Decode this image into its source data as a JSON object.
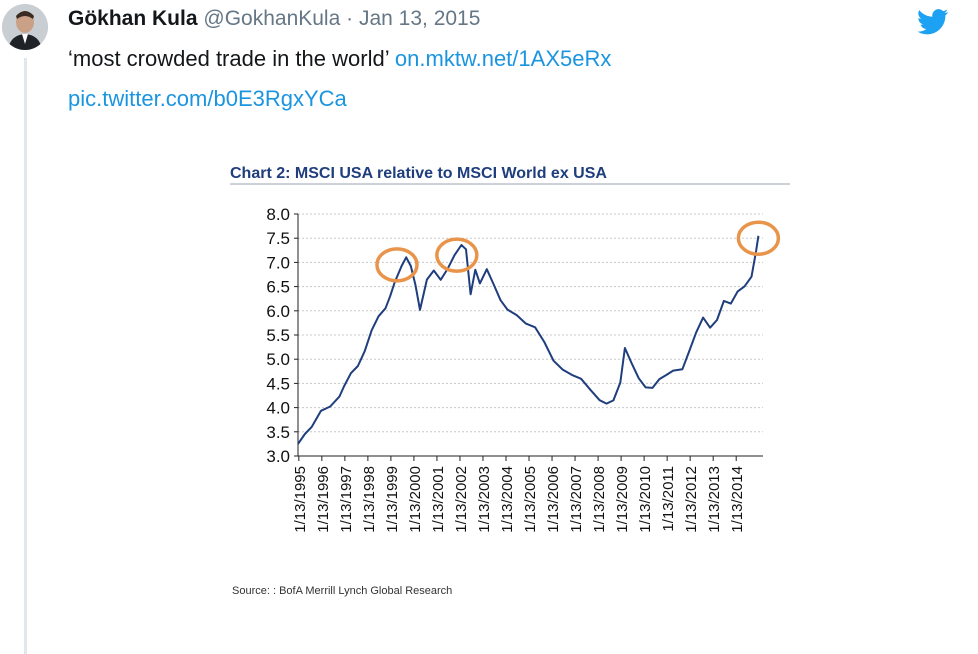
{
  "tweet": {
    "author_name": "Gökhan Kula",
    "handle": "@GokhanKula",
    "separator": "·",
    "date": "Jan 13, 2015",
    "text": "‘most crowded trade in the world’",
    "link1": "on.mktw.net/1AX5eRx",
    "link2": "pic.twitter.com/b0E3RgxYCa"
  },
  "icons": {
    "brand": "twitter-bird-icon",
    "avatar": "avatar"
  },
  "colors": {
    "link": "#1b95e0",
    "twitter_blue": "#1da1f2",
    "line": "#1f3e7d",
    "circle": "#e8944a"
  },
  "chart_data": {
    "type": "line",
    "title": "Chart 2: MSCI USA relative to MSCI World ex USA",
    "source": "Source: : BofA Merrill Lynch Global Research",
    "ylim": [
      3.0,
      8.0
    ],
    "yticks": [
      "3.0",
      "3.5",
      "4.0",
      "4.5",
      "5.0",
      "5.5",
      "6.0",
      "6.5",
      "7.0",
      "7.5",
      "8.0"
    ],
    "xticks": [
      "1/13/1995",
      "1/13/1996",
      "1/13/1997",
      "1/13/1998",
      "1/13/1999",
      "1/13/2000",
      "1/13/2001",
      "1/13/2002",
      "1/13/2003",
      "1/13/2004",
      "1/13/2005",
      "1/13/2006",
      "1/13/2007",
      "1/13/2008",
      "1/13/2009",
      "1/13/2010",
      "1/13/2011",
      "1/13/2012",
      "1/13/2013",
      "1/13/2014"
    ],
    "xlim": [
      1995.0,
      2015.2
    ],
    "grid": true,
    "series": [
      {
        "x": [
          1995.0,
          1995.3,
          1995.6,
          1996.0,
          1996.4,
          1996.8,
          1997.0,
          1997.3,
          1997.6,
          1997.9,
          1998.2,
          1998.5,
          1998.8,
          1999.0,
          1999.2,
          1999.5,
          1999.7,
          1999.9,
          2000.1,
          2000.3,
          2000.6,
          2000.9,
          2001.2,
          2001.5,
          2001.8,
          2002.1,
          2002.3,
          2002.5,
          2002.7,
          2002.9,
          2003.2,
          2003.5,
          2003.8,
          2004.1,
          2004.5,
          2004.9,
          2005.3,
          2005.7,
          2006.1,
          2006.5,
          2006.9,
          2007.3,
          2007.7,
          2008.1,
          2008.4,
          2008.7,
          2009.0,
          2009.2,
          2009.5,
          2009.8,
          2010.1,
          2010.4,
          2010.7,
          2011.0,
          2011.3,
          2011.7,
          2012.0,
          2012.3,
          2012.6,
          2012.9,
          2013.2,
          2013.5,
          2013.8,
          2014.1,
          2014.4,
          2014.7,
          2014.9,
          2015.0
        ],
        "values": [
          3.25,
          3.4,
          3.6,
          3.9,
          4.0,
          4.2,
          4.4,
          4.7,
          4.9,
          5.2,
          5.6,
          5.9,
          6.1,
          6.3,
          6.6,
          6.9,
          7.05,
          6.9,
          6.5,
          6.0,
          6.6,
          6.8,
          6.6,
          6.9,
          7.2,
          7.4,
          7.3,
          6.4,
          6.9,
          6.6,
          6.8,
          6.5,
          6.2,
          6.0,
          5.9,
          5.7,
          5.6,
          5.3,
          5.0,
          4.8,
          4.7,
          4.6,
          4.4,
          4.2,
          4.1,
          4.1,
          4.5,
          5.2,
          4.9,
          4.6,
          4.4,
          4.4,
          4.6,
          4.7,
          4.8,
          4.8,
          5.2,
          5.6,
          5.9,
          5.7,
          5.8,
          6.2,
          6.1,
          6.4,
          6.5,
          6.7,
          7.2,
          7.55
        ]
      }
    ],
    "annotations": [
      {
        "type": "circle",
        "x": 1999.3,
        "y": 6.95
      },
      {
        "type": "circle",
        "x": 2001.9,
        "y": 7.15
      },
      {
        "type": "circle",
        "x": 2015.0,
        "y": 7.5
      }
    ]
  }
}
